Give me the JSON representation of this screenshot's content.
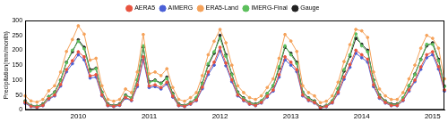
{
  "chart_data": {
    "type": "line",
    "y_label": "Precipitation(mm/month)",
    "categories": [
      null,
      null,
      null,
      null,
      null,
      null,
      null,
      null,
      null,
      "2010",
      null,
      null,
      null,
      null,
      null,
      null,
      null,
      null,
      null,
      null,
      null,
      "2011",
      null,
      null,
      null,
      null,
      null,
      null,
      null,
      null,
      null,
      null,
      null,
      "2012",
      null,
      null,
      null,
      null,
      null,
      null,
      null,
      null,
      null,
      null,
      null,
      "2013",
      null,
      null,
      null,
      null,
      null,
      null,
      null,
      null,
      null,
      null,
      null,
      "2014",
      null,
      null,
      null,
      null,
      null,
      null,
      null,
      null,
      null,
      null,
      null,
      "2015",
      null,
      null
    ],
    "ylim": [
      0,
      300
    ],
    "yticks": [
      0,
      50,
      100,
      150,
      200,
      250,
      300
    ],
    "grid": false,
    "legend": "top",
    "marker": "circle",
    "series": [
      {
        "name": "AERA5",
        "color": "#e8533f",
        "values": [
          25,
          12,
          9,
          15,
          38,
          50,
          85,
          135,
          165,
          195,
          178,
          114,
          118,
          50,
          15,
          12,
          16,
          42,
          33,
          84,
          178,
          80,
          84,
          75,
          93,
          46,
          15,
          12,
          20,
          33,
          76,
          127,
          160,
          210,
          157,
          101,
          50,
          33,
          20,
          15,
          25,
          46,
          67,
          118,
          178,
          160,
          135,
          50,
          33,
          25,
          7,
          12,
          25,
          59,
          110,
          152,
          200,
          185,
          170,
          84,
          42,
          25,
          15,
          15,
          33,
          67,
          100,
          144,
          185,
          195,
          145,
          67
        ]
      },
      {
        "name": "AIMERG",
        "color": "#4a5fd6",
        "values": [
          22,
          11,
          8,
          14,
          35,
          47,
          80,
          128,
          155,
          185,
          168,
          107,
          110,
          47,
          14,
          11,
          15,
          39,
          31,
          78,
          168,
          75,
          78,
          70,
          87,
          43,
          14,
          11,
          19,
          31,
          71,
          119,
          150,
          198,
          148,
          95,
          47,
          31,
          19,
          14,
          23,
          43,
          63,
          110,
          168,
          150,
          128,
          47,
          31,
          23,
          6,
          11,
          23,
          55,
          103,
          143,
          190,
          175,
          160,
          78,
          39,
          23,
          14,
          14,
          31,
          63,
          95,
          136,
          175,
          185,
          137,
          63
        ]
      },
      {
        "name": "ERA5-Land",
        "color": "#f5a25a",
        "values": [
          47,
          30,
          26,
          35,
          64,
          81,
          127,
          196,
          236,
          282,
          254,
          167,
          173,
          81,
          35,
          29,
          35,
          70,
          58,
          127,
          253,
          121,
          127,
          115,
          138,
          75,
          35,
          29,
          41,
          58,
          115,
          185,
          230,
          270,
          225,
          150,
          81,
          58,
          41,
          35,
          47,
          75,
          104,
          173,
          253,
          231,
          196,
          81,
          58,
          47,
          24,
          29,
          47,
          93,
          162,
          219,
          270,
          265,
          243,
          127,
          70,
          47,
          35,
          35,
          58,
          104,
          150,
          207,
          250,
          240,
          207,
          104
        ]
      },
      {
        "name": "IMERG-Final",
        "color": "#5cbf5c",
        "values": [
          28,
          14,
          12,
          18,
          44,
          58,
          98,
          158,
          200,
          230,
          205,
          130,
          138,
          58,
          18,
          14,
          18,
          48,
          40,
          102,
          215,
          92,
          98,
          88,
          105,
          52,
          18,
          14,
          24,
          42,
          88,
          155,
          195,
          240,
          180,
          118,
          58,
          38,
          24,
          18,
          30,
          55,
          82,
          145,
          215,
          185,
          155,
          58,
          38,
          28,
          8,
          14,
          30,
          72,
          135,
          185,
          255,
          215,
          195,
          98,
          48,
          28,
          18,
          18,
          40,
          82,
          118,
          168,
          220,
          220,
          165,
          78
        ]
      },
      {
        "name": "Gauge",
        "color": "#222222",
        "values": [
          30,
          15,
          12,
          20,
          45,
          60,
          100,
          160,
          195,
          235,
          210,
          135,
          140,
          60,
          20,
          15,
          20,
          50,
          40,
          100,
          210,
          95,
          100,
          90,
          110,
          55,
          20,
          15,
          25,
          40,
          90,
          150,
          190,
          250,
          185,
          120,
          60,
          40,
          25,
          20,
          30,
          55,
          80,
          140,
          210,
          190,
          160,
          60,
          40,
          30,
          10,
          15,
          30,
          70,
          130,
          180,
          240,
          220,
          200,
          100,
          50,
          30,
          20,
          20,
          40,
          80,
          120,
          170,
          215,
          225,
          170,
          80
        ]
      }
    ]
  }
}
